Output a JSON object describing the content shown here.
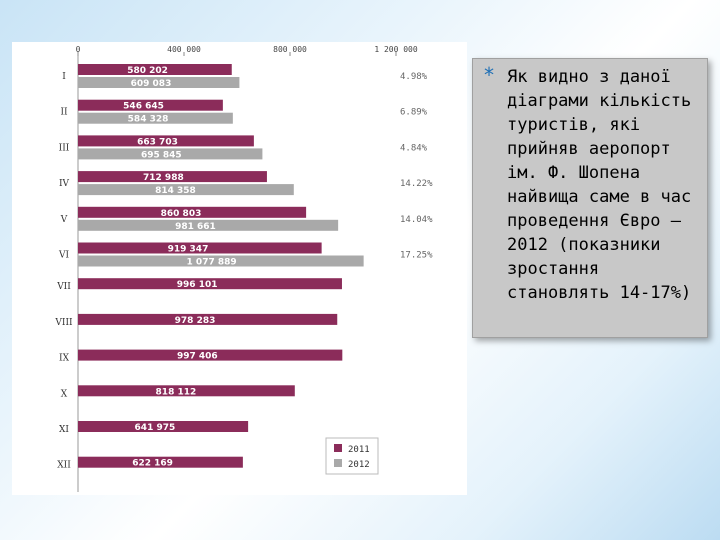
{
  "chart_data": {
    "type": "bar",
    "orientation": "horizontal",
    "categories": [
      "I",
      "II",
      "III",
      "IV",
      "V",
      "VI",
      "VII",
      "VIII",
      "IX",
      "X",
      "XI",
      "XII"
    ],
    "series": [
      {
        "name": "2011",
        "color": "#8b2c5a",
        "values": [
          580202,
          546645,
          663703,
          712988,
          860803,
          919347,
          996101,
          978283,
          997406,
          818112,
          641975,
          622169
        ],
        "labels": [
          "580 202",
          "546 645",
          "663 703",
          "712 988",
          "860 803",
          "919 347",
          "996 101",
          "978 283",
          "997 406",
          "818 112",
          "641 975",
          "622 169"
        ]
      },
      {
        "name": "2012",
        "color": "#a9a9a9",
        "values": [
          609083,
          584328,
          695845,
          814358,
          981661,
          1077889,
          null,
          null,
          null,
          null,
          null,
          null
        ],
        "labels": [
          "609 083",
          "584 328",
          "695 845",
          "814 358",
          "981 661",
          "1 077 889",
          "",
          "",
          "",
          "",
          "",
          ""
        ]
      }
    ],
    "growth": [
      "4.98%",
      "6.89%",
      "4.84%",
      "14.22%",
      "14.04%",
      "17.25%",
      "",
      "",
      "",
      "",
      "",
      ""
    ],
    "xticks": [
      {
        "value": 0,
        "label": "0"
      },
      {
        "value": 400000,
        "label": "400 000"
      },
      {
        "value": 800000,
        "label": "800 000"
      },
      {
        "value": 1200000,
        "label": "1 200 000"
      }
    ],
    "xlim": [
      0,
      1200000
    ],
    "legend_position": "bottom-right",
    "grid": false
  },
  "side_text": {
    "bullet": "*",
    "text": "Як видно з даної діаграми кількість туристів, які прийняв аеропорт ім. Ф. Шопена найвища саме в час проведення Євро – 2012 (показники зростання становлять 14-17%)"
  }
}
